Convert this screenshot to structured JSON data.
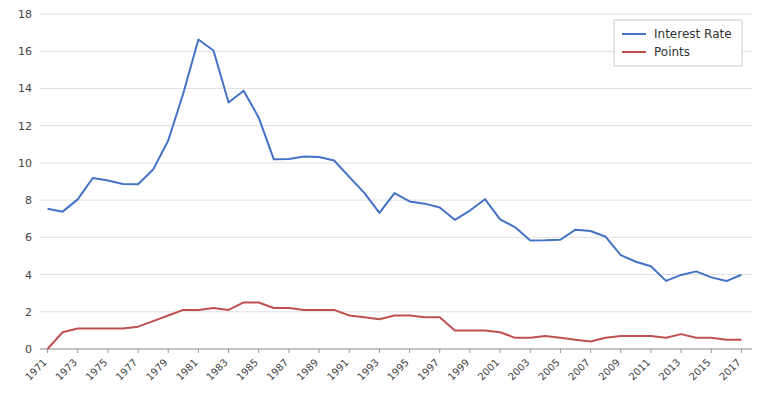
{
  "chart_data": {
    "type": "line",
    "x": [
      1971,
      1972,
      1973,
      1974,
      1975,
      1976,
      1977,
      1978,
      1979,
      1980,
      1981,
      1982,
      1983,
      1984,
      1985,
      1986,
      1987,
      1988,
      1989,
      1990,
      1991,
      1992,
      1993,
      1994,
      1995,
      1996,
      1997,
      1998,
      1999,
      2000,
      2001,
      2002,
      2003,
      2004,
      2005,
      2006,
      2007,
      2008,
      2009,
      2010,
      2011,
      2012,
      2013,
      2014,
      2015,
      2016,
      2017
    ],
    "series": [
      {
        "name": "Interest Rate",
        "color": "#4472C4",
        "values": [
          7.54,
          7.38,
          8.04,
          9.19,
          9.05,
          8.87,
          8.85,
          9.64,
          11.2,
          13.74,
          16.63,
          16.04,
          13.24,
          13.88,
          12.43,
          10.19,
          10.21,
          10.34,
          10.32,
          10.13,
          9.25,
          8.39,
          7.31,
          8.38,
          7.93,
          7.81,
          7.6,
          6.94,
          7.44,
          8.05,
          6.97,
          6.54,
          5.83,
          5.84,
          5.87,
          6.41,
          6.34,
          6.03,
          5.04,
          4.69,
          4.45,
          3.66,
          3.98,
          4.17,
          3.85,
          3.65,
          3.99
        ]
      },
      {
        "name": "Points",
        "color": "#C0504D",
        "values": [
          0.0,
          0.9,
          1.1,
          1.1,
          1.1,
          1.1,
          1.2,
          1.5,
          1.8,
          2.1,
          2.1,
          2.2,
          2.1,
          2.5,
          2.5,
          2.2,
          2.2,
          2.1,
          2.1,
          2.1,
          1.8,
          1.7,
          1.6,
          1.8,
          1.8,
          1.7,
          1.7,
          1.0,
          1.0,
          1.0,
          0.9,
          0.6,
          0.6,
          0.7,
          0.6,
          0.5,
          0.4,
          0.6,
          0.7,
          0.7,
          0.7,
          0.6,
          0.8,
          0.6,
          0.6,
          0.5,
          0.5
        ]
      }
    ],
    "xlim": [
      1970.5,
      2017.7
    ],
    "xticks": [
      1971,
      1973,
      1975,
      1977,
      1979,
      1981,
      1983,
      1985,
      1987,
      1989,
      1991,
      1993,
      1995,
      1997,
      1999,
      2001,
      2003,
      2005,
      2007,
      2009,
      2011,
      2013,
      2015,
      2017
    ],
    "ylim": [
      0,
      18
    ],
    "yticks": [
      0,
      2,
      4,
      6,
      8,
      10,
      12,
      14,
      16,
      18
    ],
    "grid": true,
    "legend": "upper right"
  }
}
